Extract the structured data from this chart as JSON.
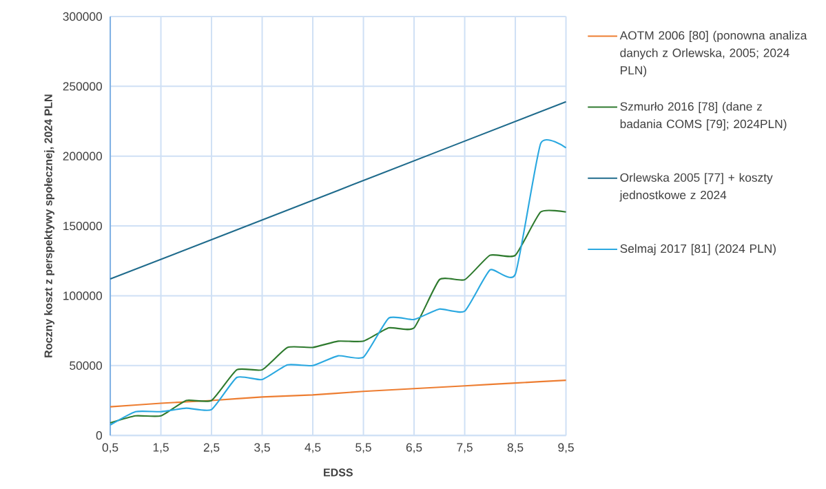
{
  "chart_data": {
    "type": "line",
    "xlabel": "EDSS",
    "ylabel": "Roczny koszt z perspektywy społecznej, 2024 PLN",
    "xlim": [
      0.5,
      9.5
    ],
    "xticks": [
      {
        "value": 0.5,
        "label": "0,5"
      },
      {
        "value": 1.5,
        "label": "1,5"
      },
      {
        "value": 2.5,
        "label": "2,5"
      },
      {
        "value": 3.5,
        "label": "3,5"
      },
      {
        "value": 4.5,
        "label": "4,5"
      },
      {
        "value": 5.5,
        "label": "5,5"
      },
      {
        "value": 6.5,
        "label": "6,5"
      },
      {
        "value": 7.5,
        "label": "7,5"
      },
      {
        "value": 8.5,
        "label": "8,5"
      },
      {
        "value": 9.5,
        "label": "9,5"
      }
    ],
    "ylim": [
      0,
      300000
    ],
    "yticks": [
      0,
      50000,
      100000,
      150000,
      200000,
      250000,
      300000
    ],
    "grid": true,
    "legend": "right",
    "line_style": "solid",
    "series": [
      {
        "name": "AOTM 2006 [80] (ponowna analiza danych z Orlewska, 2005; 2024 PLN)",
        "color": "#ed7d31",
        "x": [
          0.5,
          1.5,
          2.5,
          3.5,
          4.5,
          5.5,
          6.5,
          7.5,
          8.5,
          9.5
        ],
        "values": [
          20500,
          23000,
          25000,
          27500,
          29000,
          31500,
          33500,
          35500,
          37500,
          39500
        ]
      },
      {
        "name": "Szmurło 2016 [78] (dane z badania COMS [79]; 2024PLN)",
        "color": "#2e7a2e",
        "x": [
          0.5,
          1.0,
          1.5,
          2.0,
          2.5,
          3.0,
          3.5,
          4.0,
          4.5,
          5.0,
          5.5,
          6.0,
          6.5,
          7.0,
          7.5,
          8.0,
          8.5,
          9.0,
          9.5
        ],
        "values": [
          9000,
          14000,
          14000,
          25000,
          25000,
          47000,
          47000,
          63000,
          63000,
          67500,
          67500,
          77000,
          77000,
          111500,
          111500,
          129000,
          129000,
          160000,
          160000
        ]
      },
      {
        "name": "Orlewska 2005 [77] + koszty jednostkowe z 2024",
        "color": "#1f6b8c",
        "x": [
          0.5,
          5.0,
          9.5
        ],
        "values": [
          112000,
          175500,
          239000
        ]
      },
      {
        "name": "Selmaj 2017 [81] (2024 PLN)",
        "color": "#2aa8e0",
        "x": [
          0.5,
          1.0,
          1.5,
          2.0,
          2.5,
          3.0,
          3.5,
          4.0,
          4.5,
          5.0,
          5.5,
          6.0,
          6.5,
          7.0,
          7.5,
          8.0,
          8.5,
          9.0,
          9.5
        ],
        "values": [
          7500,
          17000,
          17000,
          19500,
          18500,
          41500,
          40000,
          50500,
          50000,
          57000,
          56000,
          84000,
          83000,
          90500,
          89000,
          118500,
          115500,
          209000,
          206000
        ]
      }
    ]
  }
}
